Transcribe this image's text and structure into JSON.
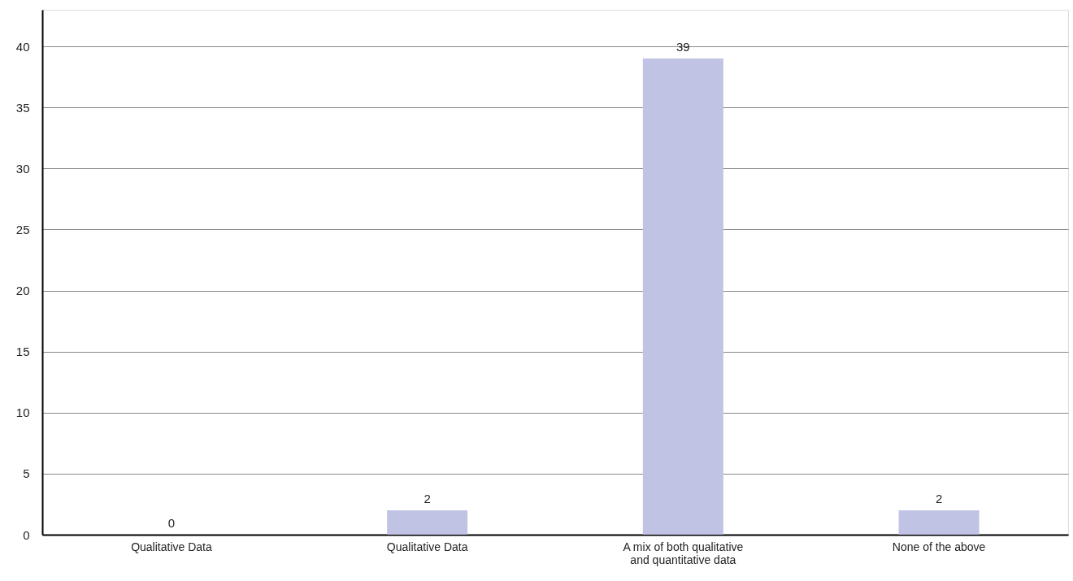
{
  "chart_data": {
    "type": "bar",
    "categories": [
      "Qualitative Data",
      "Qualitative Data",
      "A mix of both qualitative and quantitative data",
      "None of the above"
    ],
    "values": [
      0,
      2,
      39,
      2
    ],
    "color": "#c0c3e4",
    "ylim": [
      0,
      43
    ],
    "yticks": [
      0,
      5,
      10,
      15,
      20,
      25,
      30,
      35,
      40
    ],
    "grid": "y",
    "data_labels": true
  }
}
